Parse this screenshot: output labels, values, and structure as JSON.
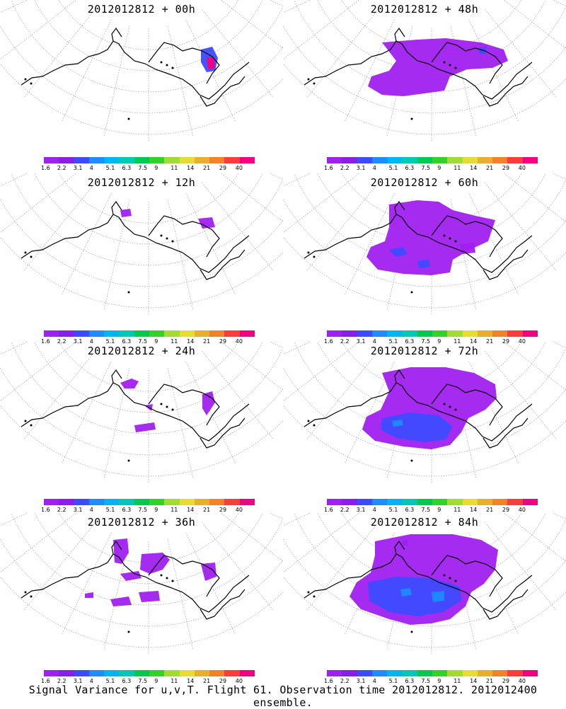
{
  "panels": [
    {
      "title": "2012012812 + 00h",
      "hour": 0
    },
    {
      "title": "2012012812 + 48h",
      "hour": 48
    },
    {
      "title": "2012012812 + 12h",
      "hour": 12
    },
    {
      "title": "2012012812 + 60h",
      "hour": 60
    },
    {
      "title": "2012012812 + 24h",
      "hour": 24
    },
    {
      "title": "2012012812 + 72h",
      "hour": 72
    },
    {
      "title": "2012012812 + 36h",
      "hour": 36
    },
    {
      "title": "2012012812 + 84h",
      "hour": 84
    }
  ],
  "colorbar": {
    "labels": [
      "1.6",
      "2.2",
      "3.1",
      "4",
      "5.1",
      "6.3",
      "7.5",
      "9",
      "11",
      "14",
      "21",
      "29",
      "40"
    ],
    "colors": [
      "#a020f0",
      "#8a1ee6",
      "#3c4bff",
      "#1e8cff",
      "#00b4f0",
      "#00c8b4",
      "#00c850",
      "#32d228",
      "#a0dc32",
      "#e6dc32",
      "#e6af2d",
      "#f08228",
      "#fa3c3c",
      "#f00082"
    ]
  },
  "footer": "Signal Variance for u,v,T. Flight 61. Observation time 2012012812. 2012012400 ensemble.",
  "colors": {
    "land": "#000000",
    "grid": "#9a9a9a",
    "low": "#a020f0",
    "mid": "#3c4bff",
    "high": "#1e8cff",
    "peak": "#f00082"
  }
}
